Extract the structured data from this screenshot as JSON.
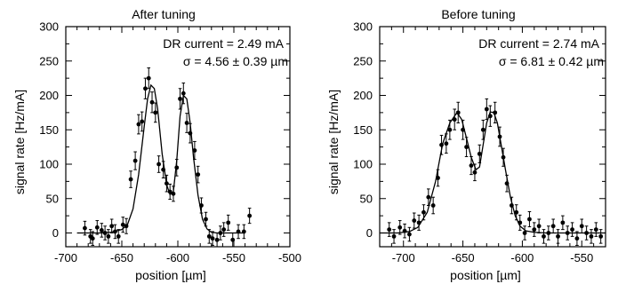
{
  "chart_data": [
    {
      "type": "scatter",
      "title": "After tuning",
      "xlabel": "position [µm]",
      "ylabel": "signal rate [Hz/mA]",
      "xlim": [
        -700,
        -500
      ],
      "ylim": [
        -20,
        300
      ],
      "xticks": [
        -700,
        -650,
        -600,
        -550,
        -500
      ],
      "yticks": [
        0,
        50,
        100,
        150,
        200,
        250,
        300
      ],
      "annotations": [
        "DR current = 2.49 mA",
        "σ = 4.56 ± 0.39 µm"
      ],
      "series": [
        {
          "x": [
            -683,
            -678,
            -676,
            -672,
            -668,
            -665,
            -662,
            -659,
            -656,
            -653,
            -649,
            -646,
            -642,
            -638,
            -635,
            -632,
            -629,
            -626,
            -623,
            -620,
            -617,
            -613,
            -610,
            -607,
            -604,
            -601,
            -598,
            -595,
            -592,
            -589,
            -585,
            -582,
            -579,
            -575,
            -572,
            -569,
            -565,
            -562,
            -559,
            -555,
            -551,
            -546,
            -541,
            -536
          ],
          "y": [
            7,
            -5,
            -8,
            8,
            4,
            0,
            -5,
            10,
            2,
            -5,
            12,
            10,
            78,
            105,
            158,
            162,
            210,
            225,
            190,
            175,
            100,
            92,
            72,
            60,
            57,
            95,
            195,
            203,
            160,
            145,
            120,
            85,
            40,
            20,
            -5,
            -8,
            -10,
            0,
            5,
            15,
            -10,
            2,
            2,
            25
          ],
          "err": [
            10,
            10,
            10,
            10,
            10,
            10,
            10,
            10,
            10,
            10,
            11,
            11,
            12,
            13,
            14,
            14,
            15,
            15,
            15,
            14,
            12,
            12,
            12,
            11,
            11,
            12,
            15,
            15,
            14,
            14,
            13,
            12,
            11,
            10,
            10,
            10,
            10,
            10,
            10,
            11,
            10,
            10,
            10,
            11
          ]
        },
        {
          "type": "line",
          "x": [
            -690,
            -680,
            -670,
            -660,
            -650,
            -645,
            -640,
            -635,
            -630,
            -627,
            -624,
            -621,
            -618,
            -614,
            -610,
            -607,
            -604,
            -601,
            -598,
            -595,
            -592,
            -589,
            -586,
            -582,
            -578,
            -574,
            -570,
            -565,
            -560,
            -550,
            -540
          ],
          "y": [
            0,
            0,
            0,
            1,
            5,
            12,
            35,
            85,
            155,
            195,
            215,
            210,
            180,
            115,
            70,
            56,
            60,
            105,
            170,
            200,
            195,
            160,
            110,
            55,
            20,
            6,
            1,
            0,
            0,
            0,
            0
          ]
        }
      ]
    },
    {
      "type": "scatter",
      "title": "Before tuning",
      "xlabel": "position [µm]",
      "ylabel": "signal rate [Hz/mA]",
      "xlim": [
        -720,
        -530
      ],
      "ylim": [
        -20,
        300
      ],
      "xticks": [
        -700,
        -650,
        -600,
        -550
      ],
      "yticks": [
        0,
        50,
        100,
        150,
        200,
        250,
        300
      ],
      "annotations": [
        "DR current = 2.74 mA",
        "σ = 6.81 ± 0.42 µm"
      ],
      "series": [
        {
          "x": [
            -712,
            -708,
            -703,
            -699,
            -695,
            -691,
            -687,
            -683,
            -679,
            -675,
            -671,
            -668,
            -664,
            -661,
            -657,
            -654,
            -650,
            -647,
            -643,
            -640,
            -636,
            -633,
            -630,
            -627,
            -623,
            -619,
            -616,
            -613,
            -609,
            -605,
            -602,
            -598,
            -594,
            -590,
            -586,
            -582,
            -578,
            -574,
            -570,
            -566,
            -562,
            -558,
            -554,
            -550,
            -546,
            -542,
            -538,
            -534
          ],
          "y": [
            5,
            -5,
            8,
            3,
            -2,
            18,
            15,
            30,
            52,
            40,
            80,
            128,
            130,
            150,
            165,
            175,
            150,
            125,
            98,
            88,
            115,
            150,
            180,
            170,
            175,
            140,
            110,
            72,
            40,
            30,
            15,
            0,
            20,
            5,
            10,
            -5,
            0,
            10,
            -5,
            15,
            0,
            5,
            -8,
            10,
            0,
            -5,
            5,
            -5
          ],
          "err": [
            10,
            10,
            10,
            10,
            10,
            11,
            11,
            11,
            12,
            12,
            12,
            14,
            14,
            14,
            15,
            15,
            14,
            14,
            13,
            12,
            13,
            14,
            15,
            15,
            15,
            14,
            13,
            12,
            12,
            11,
            11,
            10,
            11,
            10,
            10,
            10,
            10,
            10,
            10,
            10,
            10,
            10,
            10,
            10,
            10,
            10,
            10,
            10
          ]
        },
        {
          "type": "line",
          "x": [
            -720,
            -705,
            -695,
            -688,
            -680,
            -673,
            -667,
            -661,
            -655,
            -651,
            -647,
            -643,
            -639,
            -636,
            -633,
            -630,
            -627,
            -624,
            -621,
            -618,
            -614,
            -610,
            -606,
            -602,
            -597,
            -590,
            -580,
            -570,
            -550,
            -530
          ],
          "y": [
            0,
            0,
            2,
            8,
            30,
            75,
            130,
            160,
            175,
            165,
            138,
            110,
            92,
            96,
            128,
            160,
            176,
            175,
            160,
            130,
            90,
            52,
            25,
            10,
            3,
            1,
            0,
            0,
            0,
            0
          ]
        }
      ]
    }
  ]
}
